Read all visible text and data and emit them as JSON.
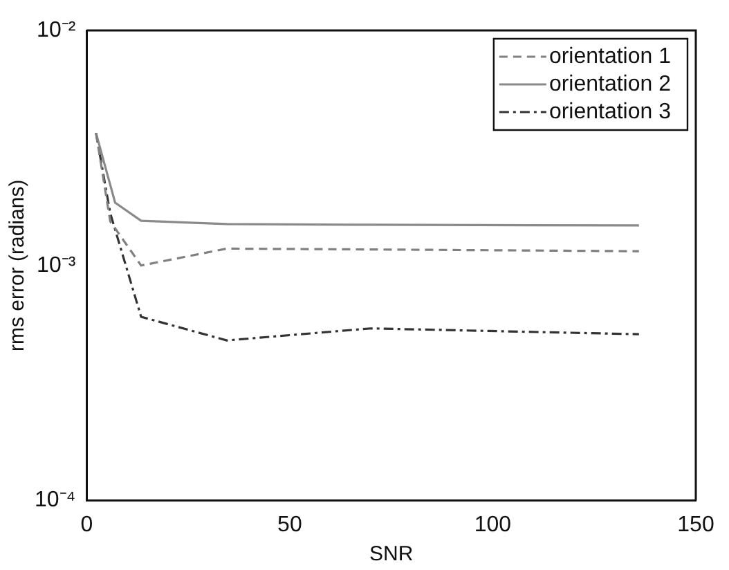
{
  "chart_data": {
    "type": "line",
    "xlabel": "SNR",
    "ylabel": "rms error (radians)",
    "log": "y",
    "grid": false,
    "legend": "top right",
    "marker": "none",
    "xlim": [
      0,
      150
    ],
    "xticks": [
      0,
      50,
      100,
      150
    ],
    "ylim": [
      0.0001,
      0.01
    ],
    "yticks": [
      {
        "value": 0.0001,
        "label": "10⁻⁴"
      },
      {
        "value": 0.001,
        "label": "10⁻³"
      },
      {
        "value": 0.01,
        "label": "10⁻²"
      }
    ],
    "series": [
      {
        "name": "orientation 1",
        "color": "#808080",
        "line_style": "dashed",
        "x": [
          2.3,
          5.8,
          13.4,
          34.5,
          70,
          136
        ],
        "values": [
          0.00366,
          0.00154,
          0.001,
          0.00118,
          0.00117,
          0.00115
        ]
      },
      {
        "name": "orientation 2",
        "color": "#8a8a8a",
        "line_style": "solid",
        "x": [
          2.3,
          7,
          13.4,
          34.5,
          70,
          136
        ],
        "values": [
          0.00366,
          0.00185,
          0.00155,
          0.0015,
          0.00149,
          0.00148
        ]
      },
      {
        "name": "orientation 3",
        "color": "#333333",
        "line_style": "dashdot",
        "x": [
          2.3,
          5.8,
          13.4,
          34.5,
          70,
          136
        ],
        "values": [
          0.00366,
          0.00167,
          0.000605,
          0.00048,
          0.00054,
          0.00051
        ]
      }
    ]
  }
}
